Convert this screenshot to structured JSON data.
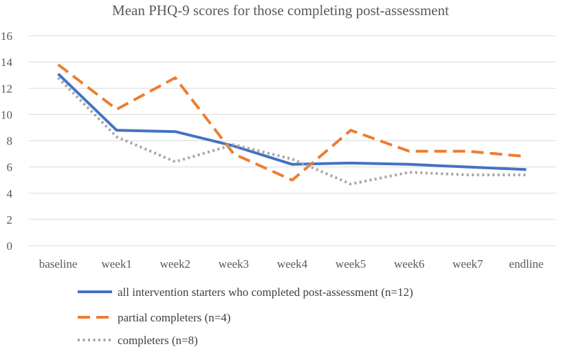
{
  "chart_data": {
    "type": "line",
    "title": "Mean PHQ-9 scores for those completing post-assessment",
    "xlabel": "",
    "ylabel": "",
    "ylim": [
      0,
      16
    ],
    "yticks": [
      0,
      2,
      4,
      6,
      8,
      10,
      12,
      14,
      16
    ],
    "grid": true,
    "legend_position": "bottom",
    "categories": [
      "baseline",
      "week1",
      "week2",
      "week3",
      "week4",
      "week5",
      "week6",
      "week7",
      "endline"
    ],
    "series": [
      {
        "name": "all intervention starters who completed post-assessment (n=12)",
        "values": [
          13.1,
          8.8,
          8.7,
          7.6,
          6.2,
          6.3,
          6.2,
          6.0,
          5.8
        ],
        "color": "#4472c4",
        "style": "solid"
      },
      {
        "name": "partial completers (n=4)",
        "values": [
          13.8,
          10.4,
          12.8,
          7.0,
          5.0,
          8.8,
          7.2,
          7.2,
          6.8
        ],
        "color": "#ed7d31",
        "style": "dashed"
      },
      {
        "name": "completers (n=8)",
        "values": [
          12.8,
          8.3,
          6.4,
          7.7,
          6.6,
          4.7,
          5.6,
          5.4,
          5.4
        ],
        "color": "#a5a5a5",
        "style": "dotted"
      }
    ]
  }
}
